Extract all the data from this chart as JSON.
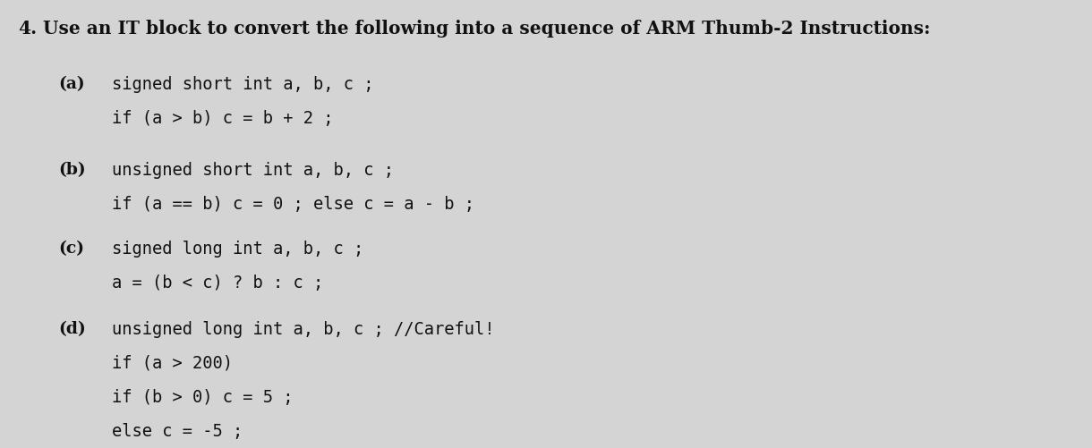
{
  "bg_color": "#d4d4d4",
  "title_number": "4.",
  "title_text": "Use an IT block to convert the following into a sequence of ARM Thumb-2 Instructions:",
  "title_font": "DejaVu Serif",
  "title_size": 14.5,
  "code_font": "DejaVu Sans Mono",
  "code_size": 13.5,
  "label_font": "DejaVu Serif",
  "label_size": 13.5,
  "text_color": "#111111",
  "sections": [
    {
      "label": "(a)",
      "lines": [
        "signed short int a, b, c ;",
        "if (a > b) c = b + 2 ;"
      ]
    },
    {
      "label": "(b)",
      "lines": [
        "unsigned short int a, b, c ;",
        "if (a == b) c = 0 ; else c = a - b ;"
      ]
    },
    {
      "label": "(c)",
      "lines": [
        "signed long int a, b, c ;",
        "a = (b < c) ? b : c ;"
      ]
    },
    {
      "label": "(d)",
      "lines": [
        "unsigned long int a, b, c ; //Careful!",
        "if (a > 200)",
        "if (b > 0) c = 5 ;",
        "else c = -5 ;"
      ]
    }
  ]
}
